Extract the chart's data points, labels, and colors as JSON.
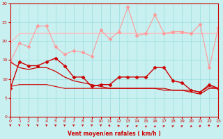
{
  "x": [
    0,
    1,
    2,
    3,
    4,
    5,
    6,
    7,
    8,
    9,
    10,
    11,
    12,
    13,
    14,
    15,
    16,
    17,
    18,
    19,
    20,
    21,
    22,
    23
  ],
  "line1_y": [
    7.5,
    14.5,
    13.5,
    13.5,
    14.5,
    15.5,
    13.5,
    10.5,
    10.5,
    8.0,
    8.5,
    8.5,
    10.5,
    10.5,
    10.5,
    10.5,
    13.0,
    13.0,
    9.5,
    9.0,
    7.0,
    6.5,
    8.5,
    7.5
  ],
  "line2_y": [
    8.0,
    8.5,
    8.5,
    8.5,
    8.5,
    8.0,
    7.5,
    7.5,
    7.5,
    7.5,
    7.5,
    7.5,
    7.5,
    7.5,
    7.5,
    7.5,
    7.5,
    7.5,
    7.0,
    7.0,
    7.0,
    6.5,
    8.0,
    7.5
  ],
  "line3_y": [
    14.5,
    19.5,
    18.5,
    24.0,
    24.0,
    18.5,
    16.5,
    17.5,
    17.0,
    16.0,
    23.0,
    20.5,
    22.5,
    29.0,
    21.5,
    22.0,
    27.0,
    22.0,
    22.5,
    22.5,
    22.0,
    24.5,
    13.0,
    23.5
  ],
  "line4_y": [
    19.5,
    22.0,
    22.0,
    22.0,
    22.0,
    22.0,
    22.0,
    22.0,
    22.0,
    22.0,
    22.0,
    22.0,
    22.0,
    22.0,
    22.0,
    22.0,
    22.0,
    22.0,
    22.0,
    22.0,
    22.0,
    22.0,
    22.0,
    22.0
  ],
  "line5_y": [
    14.5,
    13.0,
    12.5,
    13.0,
    13.0,
    12.0,
    10.5,
    9.5,
    9.0,
    8.5,
    8.0,
    7.5,
    7.5,
    7.5,
    7.5,
    7.5,
    7.5,
    7.0,
    7.0,
    7.0,
    6.5,
    6.0,
    7.5,
    7.5
  ],
  "color_dark_red": "#cc0000",
  "color_med_red": "#dd4444",
  "color_light_pink": "#ff9999",
  "color_pale_pink": "#ffbbbb",
  "bg_color": "#c8f0f0",
  "grid_color": "#99dddd",
  "axis_color": "#cc0000",
  "xlabel": "Vent moyen/en rafales ( km/h )",
  "ylim": [
    0,
    30
  ],
  "xlim": [
    0,
    23
  ],
  "yticks": [
    0,
    5,
    10,
    15,
    20,
    25,
    30
  ],
  "xticks": [
    0,
    1,
    2,
    3,
    4,
    5,
    6,
    7,
    8,
    9,
    10,
    11,
    12,
    13,
    14,
    15,
    16,
    17,
    18,
    19,
    20,
    21,
    22,
    23
  ],
  "arrow_dirs": [
    180,
    180,
    180,
    180,
    180,
    180,
    180,
    180,
    180,
    180,
    180,
    135,
    90,
    45,
    45,
    0,
    0,
    45,
    45,
    45,
    0,
    45,
    135,
    45
  ]
}
